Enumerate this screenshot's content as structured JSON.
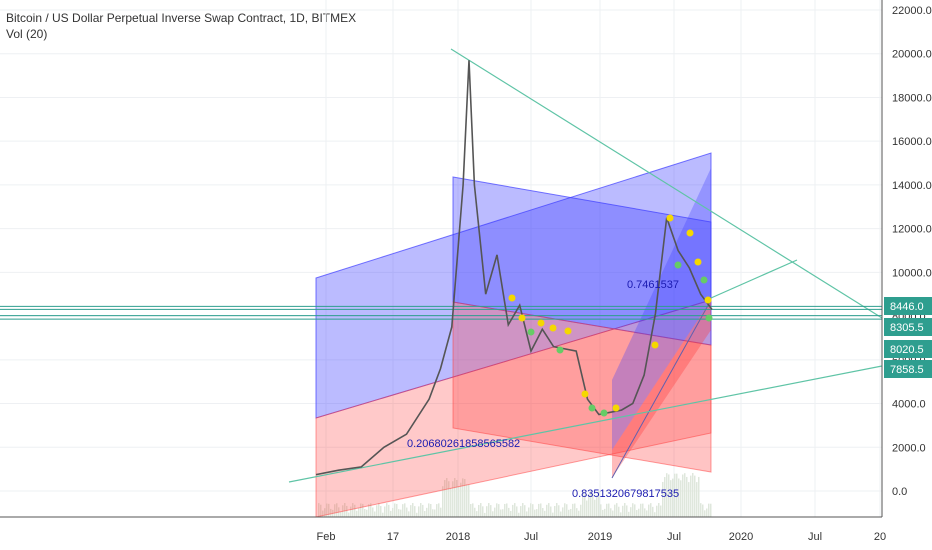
{
  "header": {
    "title": "Bitcoin / US Dollar Perpetual Inverse Swap Contract, 1D, BITMEX",
    "indicator": "Vol (20)"
  },
  "chart_data": {
    "type": "line",
    "title": "Bitcoin / US Dollar Perpetual Inverse Swap Contract, 1D, BITMEX",
    "ylim": [
      -1000,
      22500
    ],
    "y_ticks": [
      "22000.0",
      "20000.0",
      "18000.0",
      "16000.0",
      "14000.0",
      "12000.0",
      "10000.0",
      "8000.0",
      "6000.0",
      "4000.0",
      "2000.0",
      "0.0"
    ],
    "y_tick_values": [
      22000,
      20000,
      18000,
      16000,
      14000,
      12000,
      10000,
      8000,
      6000,
      4000,
      2000,
      0
    ],
    "x_ticks": [
      "Feb",
      "17",
      "2018",
      "Jul",
      "2019",
      "Jul",
      "2020",
      "Jul",
      "20"
    ],
    "price_tags": [
      {
        "label": "8446.0",
        "value": 8446,
        "color": "#2e9e8f"
      },
      {
        "label": "8305.5",
        "value": 8305.5,
        "color": "#2e9e8f"
      },
      {
        "label": "8020.5",
        "value": 8020.5,
        "color": "#2e9e8f"
      },
      {
        "label": "7858.5",
        "value": 7858.5,
        "color": "#2e9e8f"
      }
    ],
    "annotations": [
      "0.2068026185856558​2",
      "0.8351320679817535",
      "0.7461537"
    ],
    "series": [
      {
        "name": "",
        "x": [
          "2016-11",
          "2017-01",
          "2017-03",
          "2017-05",
          "2017-07",
          "2017-09",
          "2017-10",
          "2017-11",
          "2017-12",
          "2017-12-17",
          "2018-01",
          "2018-02",
          "2018-03",
          "2018-04",
          "2018-05",
          "2018-06",
          "2018-07",
          "2018-08",
          "2018-09",
          "2018-10",
          "2018-11",
          "2018-12",
          "2019-01",
          "2019-02",
          "2019-03",
          "2019-04",
          "2019-05",
          "2019-06",
          "2019-07",
          "2019-08",
          "2019-09",
          "2019-10"
        ],
        "values": [
          750,
          950,
          1100,
          2000,
          2600,
          4200,
          5600,
          7500,
          14000,
          19700,
          14000,
          9000,
          10800,
          7600,
          8500,
          6400,
          7400,
          6600,
          6500,
          6400,
          4200,
          3500,
          3600,
          3700,
          4000,
          5300,
          8100,
          12500,
          11000,
          10200,
          9000,
          8300
        ]
      }
    ],
    "colors": {
      "candles": "#555555",
      "blue_channel": "#3c3cff",
      "red_channel": "#ff3c3c",
      "trend": "#5fc4a6",
      "dot_yellow": "#f5d800",
      "dot_green": "#66cc66",
      "tag": "#2e9e8f"
    },
    "grid": true
  }
}
